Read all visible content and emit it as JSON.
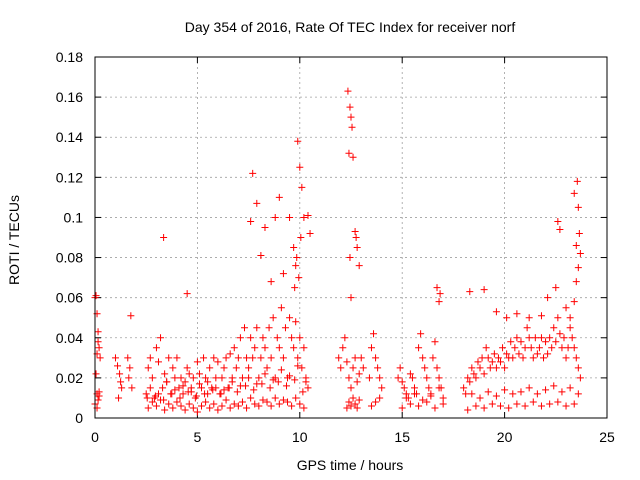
{
  "chart_data": {
    "type": "scatter",
    "title": "Day 354 of 2016, Rate Of TEC Index for receiver norf",
    "xlabel": "GPS time / hours",
    "ylabel": "ROTI / TECUs",
    "xlim": [
      0,
      25
    ],
    "ylim": [
      0,
      0.18
    ],
    "xticks": [
      0,
      5,
      10,
      15,
      20,
      25
    ],
    "yticks": [
      0,
      0.02,
      0.04,
      0.06,
      0.08,
      0.1,
      0.12,
      0.14,
      0.16,
      0.18
    ],
    "xtick_labels": [
      "0",
      "5",
      "10",
      "15",
      "20",
      "25"
    ],
    "ytick_labels": [
      "0",
      "0.02",
      "0.04",
      "0.06",
      "0.08",
      "0.1",
      "0.12",
      "0.14",
      "0.16",
      "0.18"
    ],
    "grid": true,
    "marker": "+",
    "color": "#ff0000",
    "series": [
      {
        "name": "ROTI",
        "x": [
          0.0,
          0.05,
          0.1,
          0.15,
          0.2,
          0.25,
          0.05,
          0.1,
          0.15,
          0.2,
          0.0,
          0.1,
          0.2,
          0.1,
          0.15,
          1.0,
          1.1,
          1.2,
          1.3,
          1.15,
          1.25,
          1.6,
          1.7,
          1.75,
          1.65,
          1.8,
          2.5,
          2.6,
          2.7,
          2.8,
          2.9,
          3.0,
          3.1,
          3.2,
          3.3,
          3.4,
          3.5,
          3.6,
          3.7,
          3.8,
          3.9,
          4.0,
          4.1,
          4.2,
          4.3,
          4.4,
          4.5,
          4.6,
          4.7,
          4.8,
          4.9,
          5.0,
          5.1,
          5.2,
          5.3,
          5.4,
          5.5,
          5.6,
          5.7,
          5.8,
          5.9,
          6.0,
          6.1,
          6.2,
          6.3,
          6.4,
          6.5,
          6.6,
          6.7,
          6.8,
          6.9,
          7.0,
          7.1,
          7.2,
          7.3,
          7.4,
          7.5,
          7.6,
          7.7,
          7.8,
          7.9,
          8.0,
          8.1,
          8.2,
          8.3,
          8.4,
          8.5,
          8.6,
          8.7,
          8.8,
          8.9,
          9.0,
          9.1,
          9.2,
          9.3,
          9.4,
          9.5,
          9.6,
          9.7,
          9.8,
          9.9,
          10.0,
          10.1,
          10.2,
          10.3,
          10.4,
          2.6,
          2.8,
          3.0,
          3.2,
          3.4,
          3.6,
          3.8,
          4.0,
          4.2,
          4.4,
          4.6,
          4.8,
          5.0,
          5.2,
          5.4,
          5.6,
          5.8,
          6.0,
          6.2,
          6.4,
          6.6,
          6.8,
          7.0,
          7.2,
          7.4,
          7.6,
          7.8,
          8.0,
          8.2,
          8.4,
          8.6,
          8.8,
          9.0,
          9.2,
          9.4,
          9.6,
          9.8,
          10.0,
          10.2,
          2.7,
          3.1,
          3.5,
          3.9,
          4.3,
          4.7,
          5.1,
          5.5,
          5.9,
          6.3,
          6.7,
          7.1,
          7.5,
          7.9,
          8.3,
          8.7,
          9.1,
          9.5,
          9.9,
          10.3,
          2.55,
          2.95,
          3.35,
          3.75,
          4.15,
          4.55,
          4.95,
          5.35,
          5.75,
          6.15,
          6.55,
          6.95,
          7.35,
          7.75,
          8.15,
          8.55,
          8.95,
          9.35,
          9.75,
          10.15,
          3.35,
          4.5,
          7.6,
          7.7,
          7.9,
          8.1,
          8.3,
          8.6,
          8.8,
          9.0,
          9.2,
          9.5,
          9.7,
          9.8,
          9.9,
          10.0,
          10.05,
          10.1,
          10.2,
          10.4,
          10.5,
          9.85,
          9.75,
          9.95,
          11.9,
          12.0,
          12.1,
          12.2,
          12.3,
          12.4,
          12.5,
          12.6,
          12.7,
          12.8,
          12.9,
          13.0,
          13.1,
          13.4,
          13.5,
          13.6,
          13.7,
          13.8,
          13.9,
          14.0,
          12.3,
          12.4,
          12.5,
          12.6,
          12.7,
          12.8,
          12.9,
          13.5,
          13.7,
          13.9,
          12.35,
          12.45,
          12.5,
          12.55,
          12.4,
          12.6,
          12.7,
          12.75,
          12.8,
          12.9,
          12.5,
          12.45,
          14.8,
          14.9,
          15.0,
          15.1,
          15.2,
          15.3,
          15.4,
          15.5,
          15.6,
          15.7,
          15.8,
          15.9,
          16.0,
          16.1,
          16.2,
          16.3,
          16.4,
          16.5,
          16.6,
          16.7,
          16.8,
          16.9,
          17.0,
          15.0,
          15.4,
          15.8,
          16.2,
          16.6,
          17.0,
          15.2,
          15.6,
          16.0,
          16.4,
          16.8,
          16.7,
          16.8,
          16.85,
          18.0,
          18.1,
          18.2,
          18.3,
          18.4,
          18.5,
          18.6,
          18.7,
          18.8,
          18.9,
          19.0,
          19.1,
          19.2,
          19.3,
          19.4,
          19.5,
          19.6,
          19.7,
          19.8,
          19.9,
          20.0,
          20.1,
          20.2,
          20.3,
          20.4,
          20.5,
          20.6,
          20.7,
          20.8,
          20.9,
          21.0,
          21.1,
          21.2,
          21.3,
          21.4,
          21.5,
          21.6,
          21.7,
          21.8,
          21.9,
          22.0,
          22.1,
          22.2,
          22.3,
          22.4,
          22.5,
          22.6,
          22.7,
          22.8,
          22.9,
          23.0,
          23.1,
          23.2,
          23.3,
          23.4,
          23.5,
          23.6,
          23.7,
          18.2,
          18.6,
          19.0,
          19.4,
          19.8,
          20.2,
          20.6,
          21.0,
          21.4,
          21.8,
          22.2,
          22.6,
          23.0,
          23.4,
          18.4,
          18.8,
          19.2,
          19.6,
          20.0,
          20.4,
          20.8,
          21.2,
          21.6,
          22.0,
          22.4,
          22.8,
          23.2,
          23.6,
          18.3,
          19.0,
          19.6,
          20.1,
          20.6,
          21.2,
          21.8,
          22.1,
          22.5,
          22.6,
          22.7,
          23.0,
          23.2,
          23.4,
          23.5,
          23.55,
          23.6,
          23.65,
          23.7,
          23.6,
          23.5,
          23.4
        ],
        "y": [
          0.06,
          0.061,
          0.052,
          0.043,
          0.035,
          0.03,
          0.022,
          0.012,
          0.009,
          0.013,
          0.007,
          0.005,
          0.011,
          0.032,
          0.038,
          0.03,
          0.026,
          0.022,
          0.015,
          0.01,
          0.018,
          0.03,
          0.025,
          0.051,
          0.02,
          0.015,
          0.012,
          0.025,
          0.03,
          0.02,
          0.01,
          0.035,
          0.028,
          0.04,
          0.015,
          0.022,
          0.018,
          0.03,
          0.012,
          0.025,
          0.02,
          0.03,
          0.015,
          0.02,
          0.012,
          0.018,
          0.025,
          0.022,
          0.015,
          0.02,
          0.01,
          0.028,
          0.022,
          0.015,
          0.03,
          0.02,
          0.018,
          0.025,
          0.015,
          0.03,
          0.02,
          0.028,
          0.012,
          0.02,
          0.025,
          0.03,
          0.015,
          0.032,
          0.02,
          0.035,
          0.025,
          0.03,
          0.04,
          0.02,
          0.045,
          0.03,
          0.025,
          0.04,
          0.03,
          0.035,
          0.045,
          0.02,
          0.03,
          0.04,
          0.035,
          0.025,
          0.045,
          0.03,
          0.05,
          0.02,
          0.04,
          0.035,
          0.055,
          0.03,
          0.045,
          0.02,
          0.05,
          0.04,
          0.035,
          0.048,
          0.03,
          0.04,
          0.025,
          0.035,
          0.02,
          0.015,
          0.005,
          0.008,
          0.006,
          0.009,
          0.004,
          0.007,
          0.005,
          0.008,
          0.006,
          0.004,
          0.007,
          0.005,
          0.003,
          0.006,
          0.008,
          0.005,
          0.007,
          0.004,
          0.006,
          0.009,
          0.005,
          0.007,
          0.006,
          0.008,
          0.005,
          0.01,
          0.007,
          0.006,
          0.009,
          0.008,
          0.006,
          0.01,
          0.007,
          0.009,
          0.008,
          0.006,
          0.01,
          0.007,
          0.005,
          0.015,
          0.012,
          0.018,
          0.014,
          0.016,
          0.013,
          0.017,
          0.012,
          0.015,
          0.014,
          0.018,
          0.016,
          0.02,
          0.017,
          0.022,
          0.019,
          0.024,
          0.021,
          0.026,
          0.018,
          0.01,
          0.011,
          0.009,
          0.012,
          0.01,
          0.013,
          0.011,
          0.012,
          0.014,
          0.012,
          0.015,
          0.013,
          0.016,
          0.014,
          0.017,
          0.015,
          0.018,
          0.016,
          0.019,
          0.013,
          0.09,
          0.062,
          0.098,
          0.122,
          0.107,
          0.081,
          0.095,
          0.068,
          0.1,
          0.11,
          0.072,
          0.1,
          0.085,
          0.076,
          0.138,
          0.125,
          0.09,
          0.115,
          0.1,
          0.101,
          0.092,
          0.08,
          0.065,
          0.07,
          0.03,
          0.025,
          0.035,
          0.04,
          0.028,
          0.02,
          0.015,
          0.025,
          0.03,
          0.018,
          0.022,
          0.03,
          0.025,
          0.02,
          0.035,
          0.042,
          0.03,
          0.025,
          0.02,
          0.015,
          0.005,
          0.008,
          0.006,
          0.01,
          0.007,
          0.005,
          0.009,
          0.006,
          0.008,
          0.01,
          0.163,
          0.155,
          0.15,
          0.145,
          0.132,
          0.13,
          0.093,
          0.09,
          0.085,
          0.076,
          0.06,
          0.08,
          0.02,
          0.025,
          0.018,
          0.015,
          0.012,
          0.01,
          0.022,
          0.02,
          0.015,
          0.012,
          0.035,
          0.042,
          0.03,
          0.025,
          0.02,
          0.015,
          0.012,
          0.03,
          0.038,
          0.025,
          0.02,
          0.015,
          0.01,
          0.005,
          0.007,
          0.006,
          0.008,
          0.005,
          0.007,
          0.01,
          0.012,
          0.009,
          0.011,
          0.015,
          0.065,
          0.058,
          0.062,
          0.015,
          0.012,
          0.02,
          0.018,
          0.025,
          0.022,
          0.02,
          0.028,
          0.025,
          0.03,
          0.022,
          0.035,
          0.03,
          0.025,
          0.028,
          0.032,
          0.025,
          0.03,
          0.028,
          0.035,
          0.025,
          0.032,
          0.03,
          0.038,
          0.03,
          0.035,
          0.04,
          0.032,
          0.038,
          0.03,
          0.035,
          0.045,
          0.04,
          0.035,
          0.03,
          0.04,
          0.032,
          0.035,
          0.04,
          0.03,
          0.038,
          0.032,
          0.04,
          0.035,
          0.045,
          0.038,
          0.05,
          0.042,
          0.035,
          0.04,
          0.03,
          0.035,
          0.045,
          0.04,
          0.035,
          0.03,
          0.025,
          0.02,
          0.004,
          0.006,
          0.005,
          0.007,
          0.006,
          0.005,
          0.007,
          0.006,
          0.008,
          0.006,
          0.007,
          0.008,
          0.006,
          0.007,
          0.012,
          0.01,
          0.013,
          0.011,
          0.014,
          0.012,
          0.013,
          0.015,
          0.012,
          0.014,
          0.016,
          0.013,
          0.015,
          0.012,
          0.063,
          0.064,
          0.053,
          0.05,
          0.052,
          0.05,
          0.051,
          0.06,
          0.065,
          0.098,
          0.094,
          0.055,
          0.05,
          0.058,
          0.068,
          0.118,
          0.105,
          0.092,
          0.082,
          0.075,
          0.086,
          0.112
        ]
      }
    ]
  }
}
